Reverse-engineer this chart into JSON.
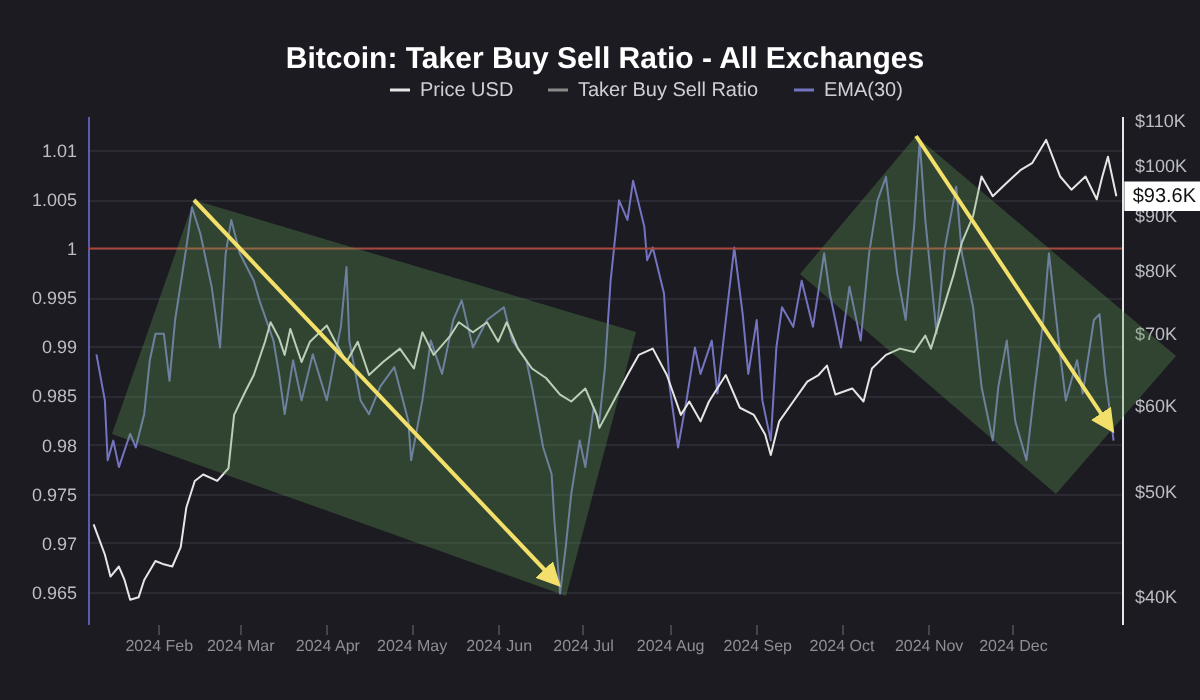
{
  "chart_data": {
    "type": "line",
    "title": "Bitcoin: Taker Buy Sell Ratio - All Exchanges",
    "xlim": [
      "2024-01-07",
      "2025-01-09"
    ],
    "xticks": [
      {
        "value": "2024-02-01",
        "label": "2024 Feb"
      },
      {
        "value": "2024-03-01",
        "label": "2024 Mar"
      },
      {
        "value": "2024-04-01",
        "label": "2024 Apr"
      },
      {
        "value": "2024-05-01",
        "label": "2024 May"
      },
      {
        "value": "2024-06-01",
        "label": "2024 Jun"
      },
      {
        "value": "2024-07-01",
        "label": "2024 Jul"
      },
      {
        "value": "2024-08-01",
        "label": "2024 Aug"
      },
      {
        "value": "2024-09-01",
        "label": "2024 Sep"
      },
      {
        "value": "2024-10-01",
        "label": "2024 Oct"
      },
      {
        "value": "2024-11-01",
        "label": "2024 Nov"
      },
      {
        "value": "2024-12-01",
        "label": "2024 Dec"
      }
    ],
    "ylim": [
      0.9617,
      1.0135
    ],
    "yticks": [
      0.965,
      0.97,
      0.975,
      0.98,
      0.985,
      0.99,
      0.995,
      1,
      1.005,
      1.01
    ],
    "y2lim": [
      37700,
      111000
    ],
    "y2ticks": [
      {
        "value": 40000,
        "label": "$40K"
      },
      {
        "value": 50000,
        "label": "$50K"
      },
      {
        "value": 60000,
        "label": "$60K"
      },
      {
        "value": 70000,
        "label": "$70K"
      },
      {
        "value": 80000,
        "label": "$80K"
      },
      {
        "value": 90000,
        "label": "$90K"
      },
      {
        "value": 100000,
        "label": "$100K"
      },
      {
        "value": 110000,
        "label": "$110K"
      }
    ],
    "log": "y2",
    "grid": "y",
    "legend": "top",
    "line_style": "solid",
    "ref_lines": [
      {
        "axis": "y",
        "value": 1,
        "color": "#a8483c"
      }
    ],
    "annotations": [
      "$93.6K"
    ],
    "series": [
      {
        "name": "Price USD",
        "color": "#e6e6e6",
        "axis": "y2",
        "x": [
          "2024-01-09",
          "2024-01-13",
          "2024-01-15",
          "2024-01-18",
          "2024-01-20",
          "2024-01-22",
          "2024-01-25",
          "2024-01-27",
          "2024-01-31",
          "2024-02-03",
          "2024-02-06",
          "2024-02-09",
          "2024-02-11",
          "2024-02-14",
          "2024-02-17",
          "2024-02-22",
          "2024-02-26",
          "2024-02-28",
          "2024-03-03",
          "2024-03-06",
          "2024-03-10",
          "2024-03-12",
          "2024-03-15",
          "2024-03-17",
          "2024-03-19",
          "2024-03-23",
          "2024-03-26",
          "2024-04-01",
          "2024-04-04",
          "2024-04-08",
          "2024-04-12",
          "2024-04-16",
          "2024-04-21",
          "2024-04-27",
          "2024-05-02",
          "2024-05-05",
          "2024-05-09",
          "2024-05-15",
          "2024-05-18",
          "2024-05-23",
          "2024-05-28",
          "2024-06-01",
          "2024-06-04",
          "2024-06-08",
          "2024-06-13",
          "2024-06-18",
          "2024-06-23",
          "2024-06-27",
          "2024-07-02",
          "2024-07-06",
          "2024-07-07",
          "2024-07-12",
          "2024-07-17",
          "2024-07-21",
          "2024-07-26",
          "2024-07-31",
          "2024-08-05",
          "2024-08-08",
          "2024-08-12",
          "2024-08-15",
          "2024-08-21",
          "2024-08-26",
          "2024-08-31",
          "2024-09-04",
          "2024-09-06",
          "2024-09-09",
          "2024-09-14",
          "2024-09-19",
          "2024-09-23",
          "2024-09-26",
          "2024-09-29",
          "2024-10-05",
          "2024-10-09",
          "2024-10-12",
          "2024-10-17",
          "2024-10-22",
          "2024-10-27",
          "2024-10-31",
          "2024-11-02",
          "2024-11-10",
          "2024-11-13",
          "2024-11-17",
          "2024-11-20",
          "2024-11-24",
          "2024-11-29",
          "2024-12-04",
          "2024-12-08",
          "2024-12-13",
          "2024-12-18",
          "2024-12-22",
          "2024-12-27",
          "2024-12-31",
          "2025-01-02",
          "2025-01-04",
          "2025-01-07"
        ],
        "values": [
          46600,
          43700,
          41700,
          42600,
          41400,
          39700,
          39900,
          41400,
          43100,
          42800,
          42600,
          44400,
          48300,
          51100,
          51800,
          51100,
          52500,
          58800,
          61800,
          64000,
          68700,
          71600,
          69200,
          66800,
          70600,
          65800,
          68700,
          71100,
          68700,
          65800,
          68700,
          64000,
          65800,
          67700,
          64900,
          70100,
          66800,
          69600,
          71600,
          70100,
          71600,
          68700,
          71600,
          67700,
          64900,
          63600,
          61400,
          60500,
          62200,
          58800,
          57200,
          60500,
          64000,
          66800,
          67700,
          64000,
          58800,
          60500,
          58000,
          60500,
          64000,
          59700,
          58800,
          56400,
          54000,
          58000,
          60500,
          63100,
          64000,
          65300,
          61400,
          62200,
          60500,
          64900,
          66800,
          67700,
          67200,
          69600,
          67700,
          79100,
          84800,
          89700,
          97600,
          93600,
          96300,
          99000,
          100400,
          105500,
          97600,
          94900,
          97600,
          93000,
          97600,
          101800,
          93600
        ]
      },
      {
        "name": "Taker Buy Sell Ratio",
        "color": "#8a8a8a"
      },
      {
        "name": "EMA(30)",
        "color": "#7474c0",
        "x": [
          "2024-01-10",
          "2024-01-13",
          "2024-01-14",
          "2024-01-16",
          "2024-01-18",
          "2024-01-22",
          "2024-01-24",
          "2024-01-27",
          "2024-01-29",
          "2024-01-31",
          "2024-02-03",
          "2024-02-05",
          "2024-02-07",
          "2024-02-11",
          "2024-02-13",
          "2024-02-16",
          "2024-02-20",
          "2024-02-23",
          "2024-02-25",
          "2024-02-27",
          "2024-03-01",
          "2024-03-06",
          "2024-03-08",
          "2024-03-13",
          "2024-03-15",
          "2024-03-17",
          "2024-03-20",
          "2024-03-23",
          "2024-03-27",
          "2024-04-01",
          "2024-04-05",
          "2024-04-06",
          "2024-04-08",
          "2024-04-09",
          "2024-04-13",
          "2024-04-16",
          "2024-04-20",
          "2024-04-25",
          "2024-04-30",
          "2024-05-01",
          "2024-05-05",
          "2024-05-08",
          "2024-05-12",
          "2024-05-16",
          "2024-05-19",
          "2024-05-23",
          "2024-05-28",
          "2024-06-03",
          "2024-06-06",
          "2024-06-11",
          "2024-06-13",
          "2024-06-17",
          "2024-06-20",
          "2024-06-21",
          "2024-06-23",
          "2024-06-25",
          "2024-06-27",
          "2024-06-30",
          "2024-07-02",
          "2024-07-05",
          "2024-07-07",
          "2024-07-09",
          "2024-07-11",
          "2024-07-14",
          "2024-07-17",
          "2024-07-19",
          "2024-07-23",
          "2024-07-24",
          "2024-07-26",
          "2024-07-30",
          "2024-08-01",
          "2024-08-04",
          "2024-08-07",
          "2024-08-10",
          "2024-08-12",
          "2024-08-16",
          "2024-08-18",
          "2024-08-21",
          "2024-08-24",
          "2024-08-27",
          "2024-08-29",
          "2024-09-01",
          "2024-09-03",
          "2024-09-06",
          "2024-09-08",
          "2024-09-10",
          "2024-09-14",
          "2024-09-17",
          "2024-09-21",
          "2024-09-25",
          "2024-09-27",
          "2024-10-01",
          "2024-10-04",
          "2024-10-08",
          "2024-10-11",
          "2024-10-14",
          "2024-10-17",
          "2024-10-21",
          "2024-10-24",
          "2024-10-27",
          "2024-10-29",
          "2024-10-31",
          "2024-11-04",
          "2024-11-07",
          "2024-11-11",
          "2024-11-13",
          "2024-11-17",
          "2024-11-20",
          "2024-11-24",
          "2024-11-26",
          "2024-11-29",
          "2024-12-02",
          "2024-12-06",
          "2024-12-09",
          "2024-12-12",
          "2024-12-14",
          "2024-12-18",
          "2024-12-20",
          "2024-12-24",
          "2024-12-26",
          "2024-12-30",
          "2025-01-01",
          "2025-01-03",
          "2025-01-06"
        ],
        "values": [
          0.9892,
          0.9845,
          0.9784,
          0.9804,
          0.9777,
          0.9811,
          0.9797,
          0.9831,
          0.9886,
          0.9913,
          0.9913,
          0.9865,
          0.9927,
          1.0001,
          1.0042,
          1.0015,
          0.9961,
          0.9899,
          0.9995,
          1.0029,
          0.9995,
          0.9967,
          0.9947,
          0.9906,
          0.9872,
          0.9831,
          0.9886,
          0.9845,
          0.9892,
          0.9845,
          0.9906,
          0.992,
          0.9981,
          0.9906,
          0.9845,
          0.9831,
          0.9859,
          0.9879,
          0.9824,
          0.9784,
          0.9845,
          0.9906,
          0.9872,
          0.9927,
          0.9947,
          0.9899,
          0.9927,
          0.994,
          0.9906,
          0.9886,
          0.9859,
          0.9797,
          0.977,
          0.9722,
          0.9648,
          0.9695,
          0.975,
          0.9804,
          0.9777,
          0.9838,
          0.9824,
          0.9879,
          0.9967,
          1.0049,
          1.0029,
          1.0069,
          1.0022,
          0.9988,
          1.0001,
          0.9954,
          0.9859,
          0.9797,
          0.9845,
          0.9899,
          0.9872,
          0.9906,
          0.9852,
          0.9927,
          1.0001,
          0.9933,
          0.9872,
          0.9927,
          0.9845,
          0.9804,
          0.9899,
          0.994,
          0.992,
          0.9967,
          0.992,
          0.9995,
          0.9954,
          0.9899,
          0.9961,
          0.9906,
          0.9995,
          1.0049,
          1.0073,
          0.9974,
          0.9927,
          1.0022,
          1.011,
          1.0029,
          0.9913,
          1.0001,
          1.0063,
          0.9995,
          0.994,
          0.9859,
          0.9804,
          0.9859,
          0.9906,
          0.9824,
          0.9784,
          0.9859,
          0.9927,
          0.9995,
          0.9892,
          0.9845,
          0.9886,
          0.9852,
          0.9927,
          0.9933,
          0.9872,
          0.9804
        ]
      }
    ]
  }
}
